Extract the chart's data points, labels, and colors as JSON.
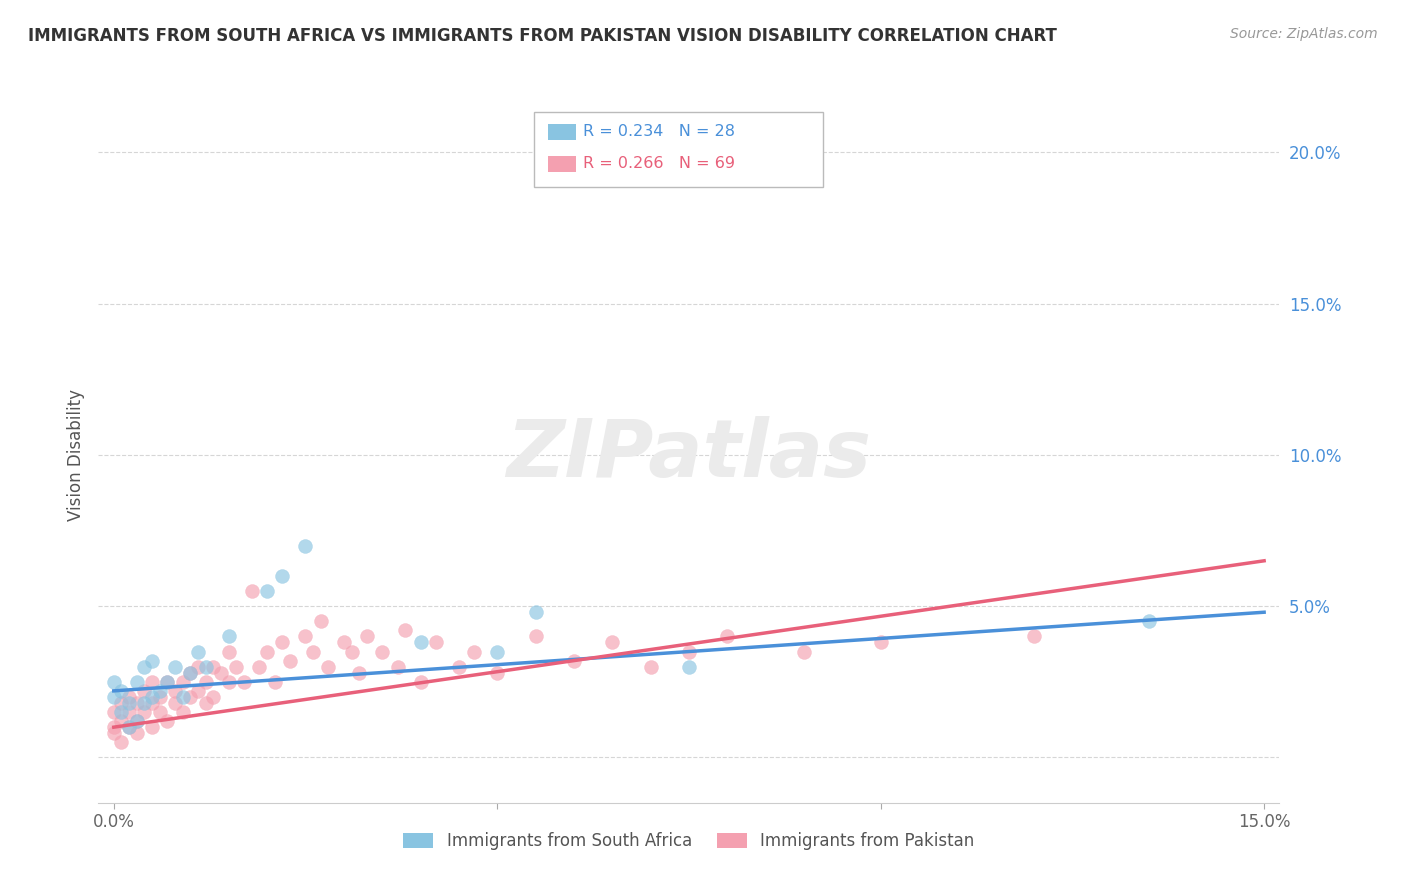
{
  "title": "IMMIGRANTS FROM SOUTH AFRICA VS IMMIGRANTS FROM PAKISTAN VISION DISABILITY CORRELATION CHART",
  "source": "Source: ZipAtlas.com",
  "ylabel": "Vision Disability",
  "xlabel": "",
  "xlim": [
    -0.002,
    0.152
  ],
  "ylim": [
    -0.015,
    0.215
  ],
  "yticks": [
    0.0,
    0.05,
    0.1,
    0.15,
    0.2
  ],
  "yticklabels": [
    "",
    "5.0%",
    "10.0%",
    "15.0%",
    "20.0%"
  ],
  "xticks": [
    0.0,
    0.05,
    0.1,
    0.15
  ],
  "xticklabels": [
    "0.0%",
    "",
    "",
    "15.0%"
  ],
  "series1_label": "Immigrants from South Africa",
  "series1_R": "0.234",
  "series1_N": "28",
  "series1_color": "#89c4e1",
  "series2_label": "Immigrants from Pakistan",
  "series2_R": "0.266",
  "series2_N": "69",
  "series2_color": "#f4a0b0",
  "series1_line_color": "#4a90d9",
  "series2_line_color": "#e8607a",
  "legend_color1": "#4a90d9",
  "legend_color2": "#e8607a",
  "watermark": "ZIPatlas",
  "background_color": "#ffffff",
  "series1_x": [
    0.0,
    0.0,
    0.001,
    0.001,
    0.002,
    0.002,
    0.003,
    0.003,
    0.004,
    0.004,
    0.005,
    0.005,
    0.006,
    0.007,
    0.008,
    0.009,
    0.01,
    0.011,
    0.012,
    0.015,
    0.02,
    0.022,
    0.025,
    0.04,
    0.05,
    0.055,
    0.075,
    0.135
  ],
  "series1_y": [
    0.02,
    0.025,
    0.022,
    0.015,
    0.018,
    0.01,
    0.025,
    0.012,
    0.03,
    0.018,
    0.02,
    0.032,
    0.022,
    0.025,
    0.03,
    0.02,
    0.028,
    0.035,
    0.03,
    0.04,
    0.055,
    0.06,
    0.07,
    0.038,
    0.035,
    0.048,
    0.03,
    0.045
  ],
  "series2_x": [
    0.0,
    0.0,
    0.0,
    0.001,
    0.001,
    0.001,
    0.002,
    0.002,
    0.002,
    0.003,
    0.003,
    0.003,
    0.004,
    0.004,
    0.005,
    0.005,
    0.005,
    0.006,
    0.006,
    0.007,
    0.007,
    0.008,
    0.008,
    0.009,
    0.009,
    0.01,
    0.01,
    0.011,
    0.011,
    0.012,
    0.012,
    0.013,
    0.013,
    0.014,
    0.015,
    0.015,
    0.016,
    0.017,
    0.018,
    0.019,
    0.02,
    0.021,
    0.022,
    0.023,
    0.025,
    0.026,
    0.027,
    0.028,
    0.03,
    0.031,
    0.032,
    0.033,
    0.035,
    0.037,
    0.038,
    0.04,
    0.042,
    0.045,
    0.047,
    0.05,
    0.055,
    0.06,
    0.065,
    0.07,
    0.075,
    0.08,
    0.09,
    0.1,
    0.12
  ],
  "series2_y": [
    0.01,
    0.015,
    0.008,
    0.012,
    0.018,
    0.005,
    0.015,
    0.01,
    0.02,
    0.012,
    0.018,
    0.008,
    0.022,
    0.015,
    0.01,
    0.018,
    0.025,
    0.015,
    0.02,
    0.025,
    0.012,
    0.022,
    0.018,
    0.025,
    0.015,
    0.02,
    0.028,
    0.022,
    0.03,
    0.025,
    0.018,
    0.03,
    0.02,
    0.028,
    0.025,
    0.035,
    0.03,
    0.025,
    0.055,
    0.03,
    0.035,
    0.025,
    0.038,
    0.032,
    0.04,
    0.035,
    0.045,
    0.03,
    0.038,
    0.035,
    0.028,
    0.04,
    0.035,
    0.03,
    0.042,
    0.025,
    0.038,
    0.03,
    0.035,
    0.028,
    0.04,
    0.032,
    0.038,
    0.03,
    0.035,
    0.04,
    0.035,
    0.038,
    0.04
  ],
  "line1_x0": 0.0,
  "line1_y0": 0.022,
  "line1_x1": 0.15,
  "line1_y1": 0.048,
  "line2_x0": 0.0,
  "line2_y0": 0.01,
  "line2_x1": 0.15,
  "line2_y1": 0.065
}
